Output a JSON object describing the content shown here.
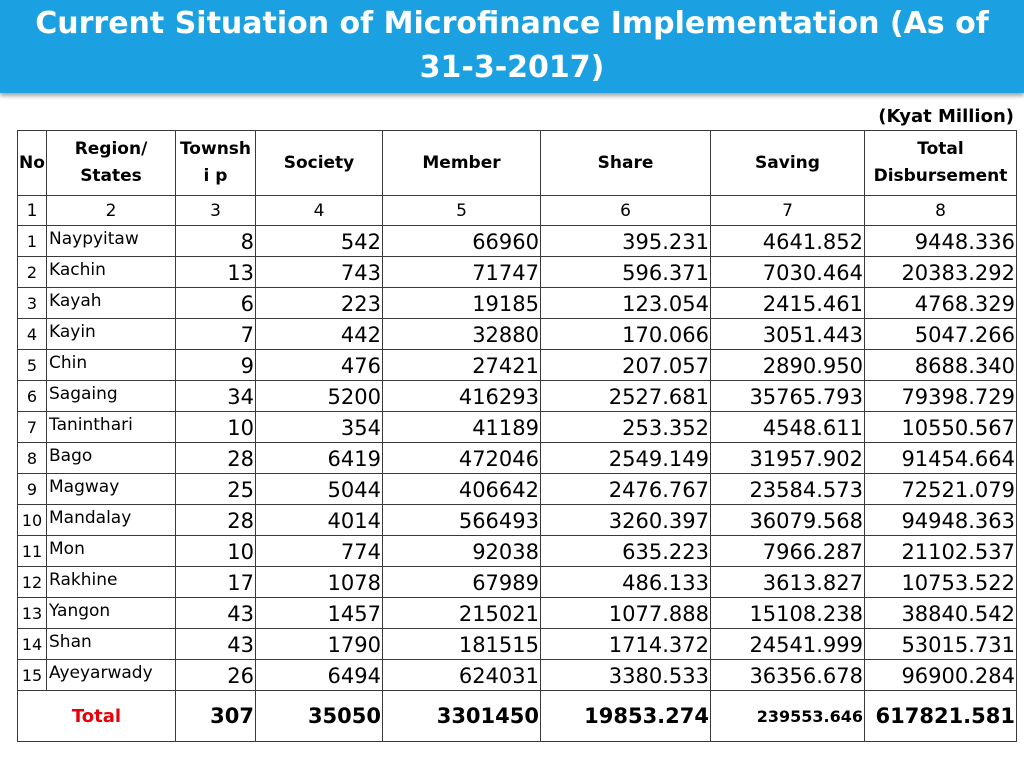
{
  "header": {
    "title_line1": "Current Situation of Microfinance Implementation  (As of",
    "title_line2": "31-3-2017)",
    "unit": "(Kyat Million)",
    "color": "#1ba1e2"
  },
  "table": {
    "headers": {
      "no": "No",
      "region": "Region/ States",
      "township": "Townshi p",
      "society": "Society",
      "member": "Member",
      "share": "Share",
      "saving": "Saving",
      "total_disbursement": "Total Disbursement"
    },
    "index_row": [
      "1",
      "2",
      "3",
      "4",
      "5",
      "6",
      "7",
      "8"
    ],
    "rows": [
      {
        "no": "1",
        "region": "Naypyitaw",
        "township": "8",
        "society": "542",
        "member": "66960",
        "share": "395.231",
        "saving": "4641.852",
        "disbursement": "9448.336"
      },
      {
        "no": "2",
        "region": "Kachin",
        "township": "13",
        "society": "743",
        "member": "71747",
        "share": "596.371",
        "saving": "7030.464",
        "disbursement": "20383.292"
      },
      {
        "no": "3",
        "region": "Kayah",
        "township": "6",
        "society": "223",
        "member": "19185",
        "share": "123.054",
        "saving": "2415.461",
        "disbursement": "4768.329"
      },
      {
        "no": "4",
        "region": "Kayin",
        "township": "7",
        "society": "442",
        "member": "32880",
        "share": "170.066",
        "saving": "3051.443",
        "disbursement": "5047.266"
      },
      {
        "no": "5",
        "region": "Chin",
        "township": "9",
        "society": "476",
        "member": "27421",
        "share": "207.057",
        "saving": "2890.950",
        "disbursement": "8688.340"
      },
      {
        "no": "6",
        "region": "Sagaing",
        "township": "34",
        "society": "5200",
        "member": "416293",
        "share": "2527.681",
        "saving": "35765.793",
        "disbursement": "79398.729"
      },
      {
        "no": "7",
        "region": "Taninthari",
        "township": "10",
        "society": "354",
        "member": "41189",
        "share": "253.352",
        "saving": "4548.611",
        "disbursement": "10550.567"
      },
      {
        "no": "8",
        "region": "Bago",
        "township": "28",
        "society": "6419",
        "member": "472046",
        "share": "2549.149",
        "saving": "31957.902",
        "disbursement": "91454.664"
      },
      {
        "no": "9",
        "region": "Magway",
        "township": "25",
        "society": "5044",
        "member": "406642",
        "share": "2476.767",
        "saving": "23584.573",
        "disbursement": "72521.079"
      },
      {
        "no": "10",
        "region": "Mandalay",
        "township": "28",
        "society": "4014",
        "member": "566493",
        "share": "3260.397",
        "saving": "36079.568",
        "disbursement": "94948.363"
      },
      {
        "no": "11",
        "region": "Mon",
        "township": "10",
        "society": "774",
        "member": "92038",
        "share": "635.223",
        "saving": "7966.287",
        "disbursement": "21102.537"
      },
      {
        "no": "12",
        "region": "Rakhine",
        "township": "17",
        "society": "1078",
        "member": "67989",
        "share": "486.133",
        "saving": "3613.827",
        "disbursement": "10753.522"
      },
      {
        "no": "13",
        "region": "Yangon",
        "township": "43",
        "society": "1457",
        "member": "215021",
        "share": "1077.888",
        "saving": "15108.238",
        "disbursement": "38840.542"
      },
      {
        "no": "14",
        "region": "Shan",
        "township": "43",
        "society": "1790",
        "member": "181515",
        "share": "1714.372",
        "saving": "24541.999",
        "disbursement": "53015.731"
      },
      {
        "no": "15",
        "region": "Ayeyarwady",
        "township": "26",
        "society": "6494",
        "member": "624031",
        "share": "3380.533",
        "saving": "36356.678",
        "disbursement": "96900.284"
      }
    ],
    "total": {
      "label": "Total",
      "township": "307",
      "society": "35050",
      "member": "3301450",
      "share": "19853.274",
      "saving": "239553.646",
      "disbursement": "617821.581",
      "label_color": "#e8000b"
    }
  }
}
